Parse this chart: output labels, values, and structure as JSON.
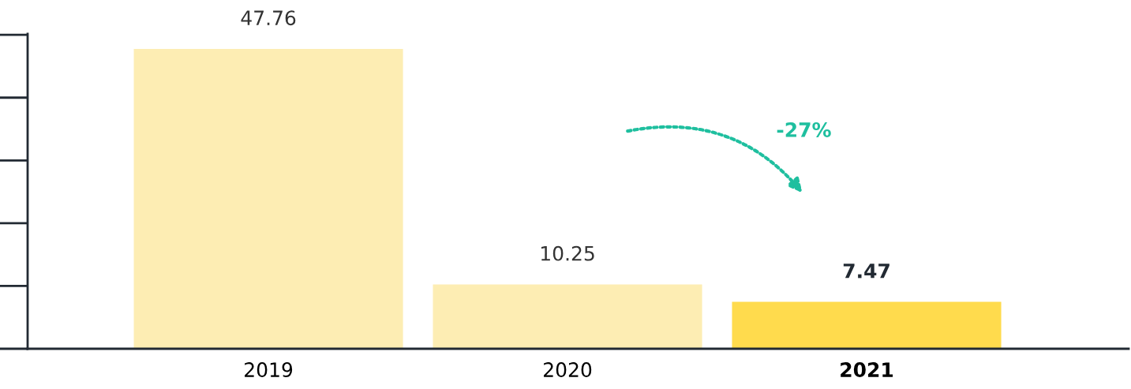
{
  "chart_data": {
    "type": "bar",
    "categories": [
      "2019",
      "2020",
      "2021"
    ],
    "values": [
      47.76,
      10.25,
      7.47
    ],
    "colors": [
      "#fdedb3",
      "#fdedb3",
      "#ffdb4d"
    ],
    "data_labels": true,
    "annotations": [
      "-27%"
    ],
    "grid": false,
    "legend": false
  }
}
